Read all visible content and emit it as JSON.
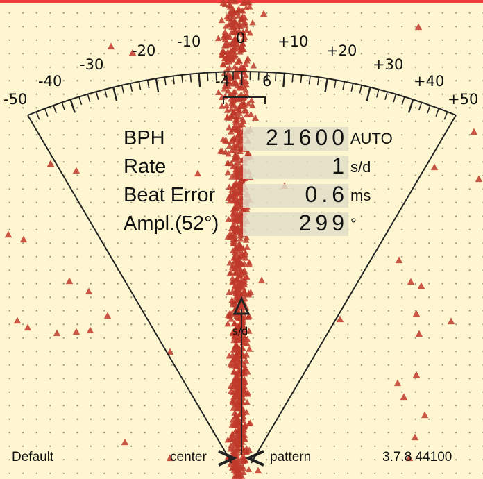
{
  "scale": {
    "labels": [
      "-50",
      "-40",
      "-30",
      "-20",
      "-10",
      "0",
      "+10",
      "+20",
      "+30",
      "+40",
      "+50"
    ],
    "window_left": "-4",
    "window_right": "6",
    "pointer_unit": "s/d"
  },
  "readout": [
    {
      "label": "BPH",
      "value": "21600",
      "unit": "AUTO"
    },
    {
      "label": "Rate",
      "value": "1",
      "unit": "s/d"
    },
    {
      "label": "Beat Error",
      "value": "0.6",
      "unit": "ms"
    },
    {
      "label": "Ampl.(52°)",
      "value": "299",
      "unit": "°"
    }
  ],
  "footer": {
    "preset": "Default",
    "center_label": "center",
    "pattern_label": "pattern",
    "version": "3.7.8 44100"
  },
  "colors": {
    "background": "#fdf6d1",
    "marker": "#c0392b",
    "top_bar": "#ee3b3b"
  }
}
